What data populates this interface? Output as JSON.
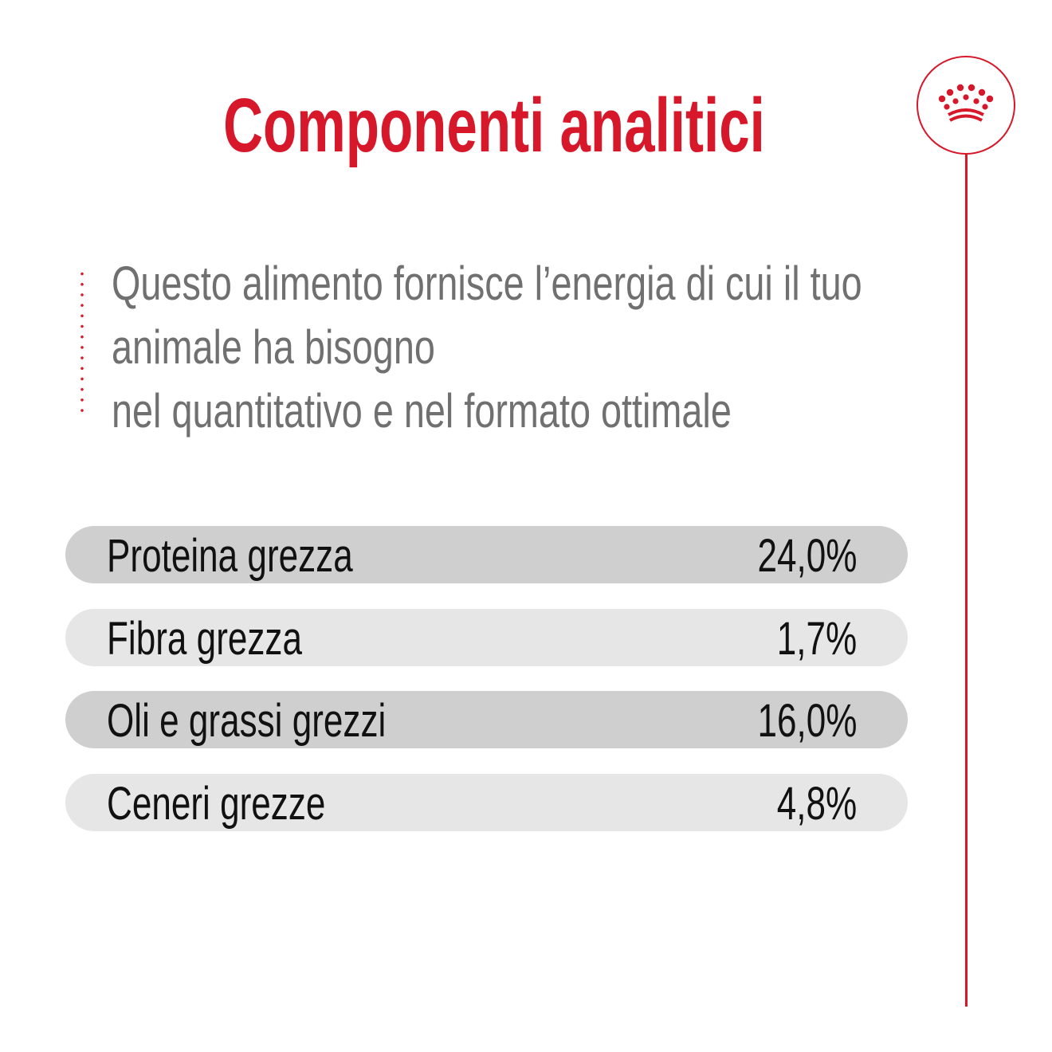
{
  "title": "Componenti analitici",
  "description": {
    "lines": [
      "Questo alimento fornisce l’energia di cui il tuo",
      "animale ha bisogno",
      "nel quantitativo e nel formato ottimale"
    ]
  },
  "components": [
    {
      "label": "Proteina grezza",
      "value": "24,0%"
    },
    {
      "label": "Fibra grezza",
      "value": "1,7%"
    },
    {
      "label": "Oli e grassi grezzi",
      "value": "16,0%"
    },
    {
      "label": "Ceneri grezze",
      "value": "4,8%"
    }
  ],
  "colors": {
    "accent": "#d7182a",
    "text_dark": "#111111",
    "text_gray": "#707070",
    "row_dark": "#cfcfcf",
    "row_light": "#e6e6e6"
  },
  "icons": {
    "logo": "crown-icon"
  }
}
